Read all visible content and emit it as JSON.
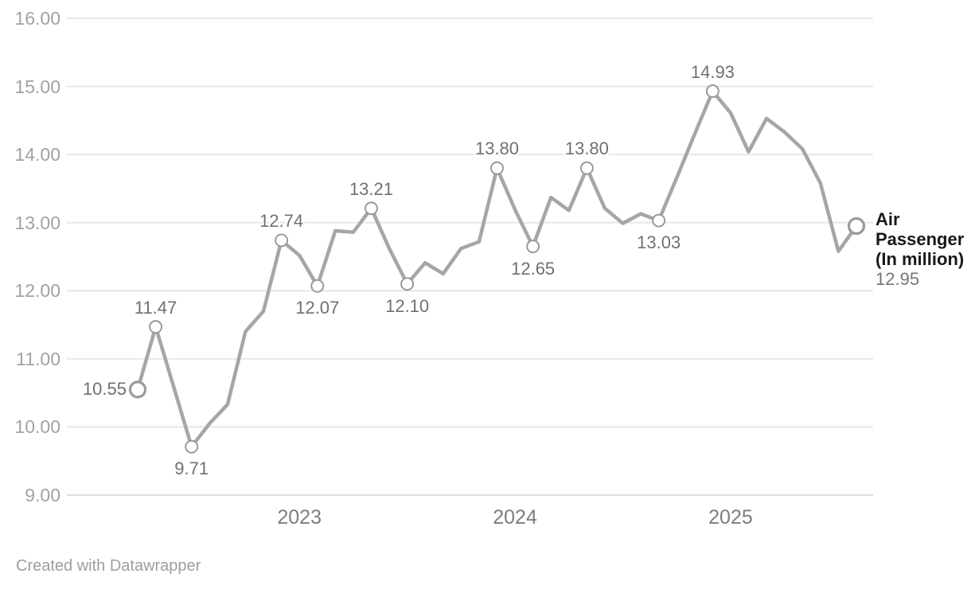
{
  "page": {
    "background_color": "#ffffff"
  },
  "series_label": {
    "title": "Air Passenger (In million)",
    "value": "12.95"
  },
  "footer": {
    "text": "Created with Datawrapper"
  },
  "chart_data": {
    "type": "line",
    "title": "",
    "xlabel": "",
    "ylabel": "",
    "ylim": [
      9,
      16
    ],
    "y_tick_step": 1,
    "grid": "horizontal-only",
    "legend_position": "right-of-last-point",
    "y_ticks": [
      "16.00",
      "15.00",
      "14.00",
      "13.00",
      "12.00",
      "11.00",
      "10.00",
      "9.00"
    ],
    "x_ticks": [
      {
        "label": "2023",
        "month": "2023-01"
      },
      {
        "label": "2024",
        "month": "2024-01"
      },
      {
        "label": "2025",
        "month": "2025-01"
      }
    ],
    "series": [
      {
        "name": "Air Passenger (In million)",
        "x": [
          "2022-04",
          "2022-05",
          "2022-06",
          "2022-07",
          "2022-08",
          "2022-09",
          "2022-10",
          "2022-11",
          "2022-12",
          "2023-01",
          "2023-02",
          "2023-03",
          "2023-04",
          "2023-05",
          "2023-06",
          "2023-07",
          "2023-08",
          "2023-09",
          "2023-10",
          "2023-11",
          "2023-12",
          "2024-01",
          "2024-02",
          "2024-03",
          "2024-04",
          "2024-05",
          "2024-06",
          "2024-07",
          "2024-08",
          "2024-09",
          "2024-10",
          "2024-11",
          "2024-12",
          "2025-01",
          "2025-02",
          "2025-03",
          "2025-04",
          "2025-05",
          "2025-06",
          "2025-07",
          "2025-08"
        ],
        "values": [
          10.55,
          11.47,
          10.59,
          9.71,
          10.05,
          10.33,
          11.4,
          11.7,
          12.74,
          12.52,
          12.07,
          12.88,
          12.86,
          13.21,
          12.62,
          12.1,
          12.41,
          12.25,
          12.62,
          12.72,
          13.8,
          13.19,
          12.65,
          13.37,
          13.18,
          13.8,
          13.21,
          12.99,
          13.13,
          13.03,
          13.66,
          14.3,
          14.93,
          14.61,
          14.04,
          14.53,
          14.33,
          14.08,
          13.58,
          12.58,
          12.95
        ]
      }
    ],
    "point_labels": [
      {
        "index": 0,
        "text": "10.55",
        "position": "left",
        "big_marker": true
      },
      {
        "index": 1,
        "text": "11.47",
        "position": "above"
      },
      {
        "index": 3,
        "text": "9.71",
        "position": "below"
      },
      {
        "index": 8,
        "text": "12.74",
        "position": "above"
      },
      {
        "index": 10,
        "text": "12.07",
        "position": "below"
      },
      {
        "index": 13,
        "text": "13.21",
        "position": "above"
      },
      {
        "index": 15,
        "text": "12.10",
        "position": "below"
      },
      {
        "index": 20,
        "text": "13.80",
        "position": "above"
      },
      {
        "index": 22,
        "text": "12.65",
        "position": "below"
      },
      {
        "index": 25,
        "text": "13.80",
        "position": "above"
      },
      {
        "index": 29,
        "text": "13.03",
        "position": "below"
      },
      {
        "index": 32,
        "text": "14.93",
        "position": "above"
      },
      {
        "index": 40,
        "text": "12.95",
        "position": "series-label",
        "big_marker": true
      }
    ],
    "colors": {
      "line": "#a6a6a6",
      "marker_stroke": "#9a9a9a",
      "marker_fill": "#ffffff",
      "gridline": "#e8e8e8",
      "baseline": "#dcdcdc",
      "y_tick_text": "#a2a2a2",
      "x_tick_text": "#7d7d7d",
      "point_label_text": "#707070",
      "series_label_text": "#191919",
      "series_value_text": "#757575",
      "footer_text": "#9e9e9e"
    }
  }
}
